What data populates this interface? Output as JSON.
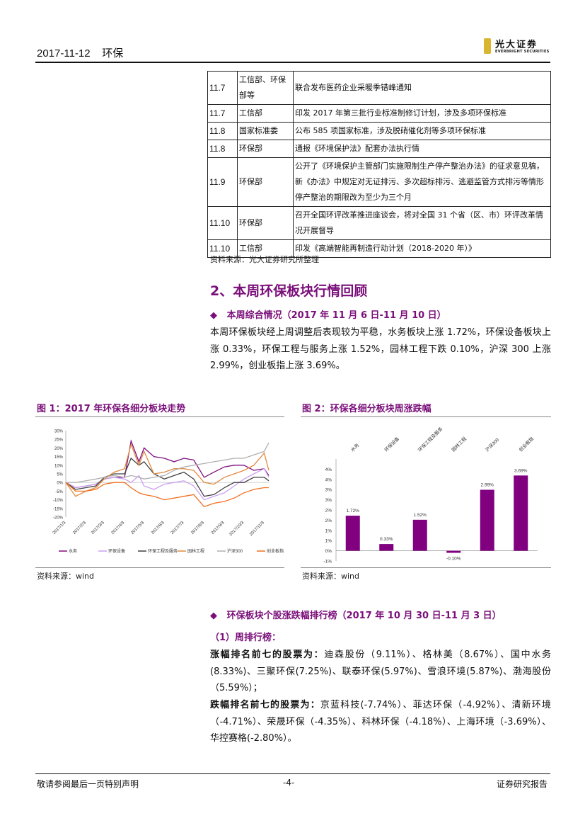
{
  "header": {
    "date": "2017-11-12",
    "sector": "环保",
    "logo_cn": "光大证券",
    "logo_en": "EVERBRIGHT SECURITIES",
    "logo_color": "#d9b530"
  },
  "news_table": {
    "rows": [
      {
        "date": "11.7",
        "org": "工信部、环保部等",
        "event": "联合发布医药企业采暖季错峰通知"
      },
      {
        "date": "11.7",
        "org": "工信部",
        "event": "印发 2017 年第三批行业标准制修订计划，涉及多项环保标准"
      },
      {
        "date": "11.8",
        "org": "国家标准委",
        "event": "公布 585 项国家标准，涉及脱硝催化剂等多项环保标准"
      },
      {
        "date": "11.8",
        "org": "环保部",
        "event": "通报《环境保护法》配套办法执行情"
      },
      {
        "date": "11.9",
        "org": "环保部",
        "event": "公开了《环境保护主管部门实施限制生产停产整治办法》的征求意见稿，新《办法》中规定对无证排污、多次超标排污、逃避监管方式排污等情形停产整治的期限改为至少为三个月"
      },
      {
        "date": "11.10",
        "org": "环保部",
        "event": "召开全国环评改革推进座谈会，将对全国 31 个省（区、市）环评改革情况开展督导"
      },
      {
        "date": "11.10",
        "org": "工信部",
        "event": "印发《高端智能再制造行动计划（2018-2020 年）》"
      }
    ],
    "source": "资料来源：光大证券研究所整理"
  },
  "section": {
    "title": "2、本周环保板块行情回顾",
    "sub_title": "本周综合情况（2017 年 11 月 6 日-11 月 10 日）",
    "paragraph": "本周环保板块经上周调整后表现较为平稳，水务板块上涨 1.72%，环保设备板块上涨 0.33%，环保工程与服务上涨 1.52%，园林工程下跌 0.10%，沪深 300 上涨 2.99%，创业板指上涨 3.69%。"
  },
  "figures": {
    "fig1_title": "图 1：2017 年环保各细分板块走势",
    "fig2_title": "图 2：环保各细分板块周涨跌幅",
    "fig1_source": "资料来源：wind",
    "fig2_source": "资料来源：wind"
  },
  "chart_data": [
    {
      "type": "line",
      "title": "",
      "ylim": [
        -20,
        30
      ],
      "y_ticks": [
        "30%",
        "25%",
        "20%",
        "15%",
        "10%",
        "5%",
        "0%",
        "-5%",
        "-10%",
        "-15%",
        "-20%"
      ],
      "x_tick_labels": [
        "2017/1/3",
        "2017/2/3",
        "2017/3/3",
        "2017/4/3",
        "2017/5/3",
        "2017/6/3",
        "2017/7/3",
        "2017/8/3",
        "2017/9/3",
        "2017/10/3",
        "2017/11/3"
      ],
      "x": [
        "2017-01-03",
        "2017-01-18",
        "2017-02-03",
        "2017-02-18",
        "2017-03-03",
        "2017-03-18",
        "2017-04-03",
        "2017-04-13",
        "2017-04-25",
        "2017-05-03",
        "2017-05-18",
        "2017-06-03",
        "2017-06-18",
        "2017-07-03",
        "2017-07-18",
        "2017-08-03",
        "2017-08-18",
        "2017-09-03",
        "2017-09-18",
        "2017-10-03",
        "2017-10-18",
        "2017-11-03",
        "2017-11-10"
      ],
      "legend": "bottom",
      "series": [
        {
          "name": "水务",
          "color": "#7f0f7f",
          "values": [
            0,
            -3,
            -2,
            -1,
            2,
            3,
            3,
            24,
            12,
            20,
            15,
            14,
            12,
            14,
            13,
            3,
            6,
            9,
            10,
            10,
            7,
            8,
            4
          ]
        },
        {
          "name": "环保设备",
          "color": "#c9a0f0",
          "values": [
            0,
            -3,
            -2,
            -1,
            2,
            3,
            2,
            0,
            4,
            -2,
            -4,
            -1,
            0,
            1,
            -2,
            -10,
            -8,
            -6,
            -2,
            2,
            5,
            8,
            3
          ]
        },
        {
          "name": "环保工程及服务",
          "color": "#404040",
          "values": [
            0,
            -4,
            -3,
            -2,
            3,
            5,
            5,
            14,
            10,
            12,
            5,
            2,
            4,
            6,
            2,
            -8,
            -7,
            -3,
            0,
            0,
            3,
            3,
            1
          ]
        },
        {
          "name": "园林工程",
          "color": "#e08a40",
          "values": [
            0,
            -8,
            -5,
            -3,
            2,
            6,
            8,
            22,
            10,
            18,
            5,
            6,
            8,
            8,
            7,
            0,
            -1,
            3,
            5,
            7,
            10,
            17,
            7
          ]
        },
        {
          "name": "沪深300",
          "color": "#b0b0b0",
          "values": [
            0,
            0,
            1,
            2,
            3,
            4,
            3,
            4,
            3,
            2,
            3,
            4,
            7,
            9,
            10,
            11,
            12,
            13,
            14,
            14,
            16,
            18,
            23
          ]
        },
        {
          "name": "创业板指",
          "color": "#f07020",
          "values": [
            0,
            -5,
            -5,
            -4,
            -1,
            0,
            0,
            -3,
            -6,
            -7,
            -8,
            -10,
            -9,
            -8,
            -7,
            -14,
            -12,
            -11,
            -9,
            -6,
            -4,
            -3,
            -3
          ]
        }
      ]
    },
    {
      "type": "bar",
      "title": "",
      "color": "#800080",
      "categories": [
        "水务",
        "环保设备",
        "环保工程及服务",
        "园林工程",
        "沪深300",
        "创业板指"
      ],
      "values": [
        1.72,
        0.33,
        1.52,
        -0.1,
        2.99,
        3.69
      ],
      "data_labels": [
        "1.72%",
        "0.33%",
        "1.52%",
        "-0.10%",
        "2.99%",
        "3.69%"
      ],
      "ylim": [
        -0.5,
        4.5
      ],
      "y_ticks": [
        "4%",
        "4%",
        "3%",
        "3%",
        "2%",
        "2%",
        "1%",
        "1%",
        "0%",
        "-1%"
      ]
    }
  ],
  "ranking": {
    "title": "环保板块个股涨跌幅排行榜（2017 年 10 月 30 日-11 月 3 日）",
    "sub": "（1）周排行榜：",
    "up_label": "涨幅排名前七的股票为：",
    "up_text": "迪森股份（9.11%）、格林美（8.67%）、国中水务(8.33%)、三聚环保(7.25%)、联泰环保(5.97%)、雪浪环境(5.87%)、渤海股份（5.59%）；",
    "down_label": "跌幅排名前七的股票为：",
    "down_text": "京蓝科技(-7.74%）、菲达环保（-4.92%）、清新环境（-4.71%）、荣晟环保（-4.35%）、科林环保（-4.18%）、上海环境（-3.69%）、华控赛格(-2.80%）。"
  },
  "footer": {
    "disclaimer": "敬请参阅最后一页特别声明",
    "page": "-4-",
    "type": "证券研究报告"
  }
}
